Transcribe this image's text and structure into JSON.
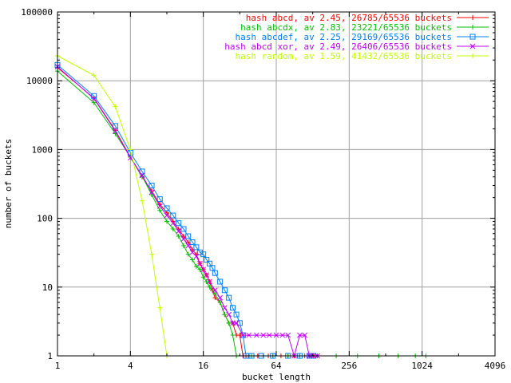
{
  "chart_data": {
    "type": "line",
    "title": "",
    "xlabel": "bucket length",
    "ylabel": "number of buckets",
    "xscale": "log2",
    "yscale": "log10",
    "xlim": [
      1,
      4096
    ],
    "ylim": [
      1,
      100000
    ],
    "grid": true,
    "legend_position": "top-right",
    "x_ticks": [
      1,
      4,
      16,
      64,
      256,
      1024,
      4096
    ],
    "x_tick_labels": [
      "1",
      "4",
      "16",
      "64",
      "256",
      "1024",
      "4096"
    ],
    "y_ticks": [
      1,
      10,
      100,
      1000,
      10000,
      100000
    ],
    "y_tick_labels": [
      "1",
      "10",
      "100",
      "1000",
      "10000",
      "100000"
    ],
    "series": [
      {
        "name": "hash abcd, av 2.45, 26785/65536 buckets",
        "color": "#ff0000",
        "marker": "plus",
        "points": [
          [
            1,
            15500
          ],
          [
            2,
            5600
          ],
          [
            3,
            1900
          ],
          [
            4,
            780
          ],
          [
            5,
            400
          ],
          [
            6,
            250
          ],
          [
            7,
            160
          ],
          [
            8,
            120
          ],
          [
            9,
            90
          ],
          [
            10,
            70
          ],
          [
            11,
            55
          ],
          [
            12,
            45
          ],
          [
            13,
            35
          ],
          [
            14,
            30
          ],
          [
            15,
            22
          ],
          [
            16,
            18
          ],
          [
            17,
            15
          ],
          [
            18,
            12
          ],
          [
            19,
            9
          ],
          [
            20,
            7
          ],
          [
            22,
            6
          ],
          [
            24,
            4
          ],
          [
            26,
            3
          ],
          [
            28,
            3
          ],
          [
            30,
            2
          ],
          [
            32,
            2
          ],
          [
            34,
            1
          ],
          [
            36,
            1
          ],
          [
            40,
            1
          ],
          [
            45,
            1
          ],
          [
            50,
            1
          ],
          [
            55,
            1
          ],
          [
            60,
            1
          ],
          [
            70,
            1
          ],
          [
            80,
            1
          ],
          [
            90,
            1
          ],
          [
            100,
            1
          ],
          [
            110,
            1
          ],
          [
            120,
            1
          ],
          [
            130,
            1
          ],
          [
            140,
            1
          ]
        ]
      },
      {
        "name": "hash abcdx, av 2.83, 23221/65536 buckets",
        "color": "#00c000",
        "marker": "plus",
        "points": [
          [
            1,
            13800
          ],
          [
            2,
            4800
          ],
          [
            3,
            1700
          ],
          [
            4,
            780
          ],
          [
            5,
            410
          ],
          [
            6,
            220
          ],
          [
            7,
            130
          ],
          [
            8,
            90
          ],
          [
            9,
            70
          ],
          [
            10,
            55
          ],
          [
            11,
            40
          ],
          [
            12,
            30
          ],
          [
            13,
            25
          ],
          [
            14,
            20
          ],
          [
            15,
            18
          ],
          [
            16,
            14
          ],
          [
            17,
            12
          ],
          [
            18,
            10
          ],
          [
            20,
            8
          ],
          [
            22,
            6
          ],
          [
            24,
            4
          ],
          [
            26,
            3
          ],
          [
            28,
            2
          ],
          [
            30,
            1
          ],
          [
            40,
            1
          ],
          [
            60,
            1
          ],
          [
            80,
            1
          ],
          [
            100,
            1
          ],
          [
            140,
            1
          ],
          [
            200,
            1
          ],
          [
            300,
            1
          ],
          [
            450,
            1
          ],
          [
            650,
            1
          ],
          [
            900,
            1
          ],
          [
            1100,
            1
          ]
        ]
      },
      {
        "name": "hash abcdef, av 2.25, 29169/65536 buckets",
        "color": "#0080ff",
        "marker": "square",
        "points": [
          [
            1,
            17000
          ],
          [
            2,
            6000
          ],
          [
            3,
            2200
          ],
          [
            4,
            900
          ],
          [
            5,
            480
          ],
          [
            6,
            300
          ],
          [
            7,
            190
          ],
          [
            8,
            140
          ],
          [
            9,
            110
          ],
          [
            10,
            85
          ],
          [
            11,
            70
          ],
          [
            12,
            55
          ],
          [
            13,
            45
          ],
          [
            14,
            38
          ],
          [
            15,
            32
          ],
          [
            16,
            30
          ],
          [
            17,
            25
          ],
          [
            18,
            22
          ],
          [
            19,
            19
          ],
          [
            20,
            16
          ],
          [
            22,
            12
          ],
          [
            24,
            9
          ],
          [
            26,
            7
          ],
          [
            28,
            5
          ],
          [
            30,
            4
          ],
          [
            32,
            3
          ],
          [
            34,
            2
          ],
          [
            36,
            1
          ],
          [
            40,
            1
          ],
          [
            48,
            1
          ],
          [
            60,
            1
          ],
          [
            80,
            1
          ],
          [
            100,
            1
          ],
          [
            120,
            1
          ],
          [
            130,
            1
          ]
        ]
      },
      {
        "name": "hash abcd xor, av 2.49, 26406/65536 buckets",
        "color": "#c000ff",
        "marker": "cross",
        "points": [
          [
            1,
            16000
          ],
          [
            2,
            5500
          ],
          [
            3,
            1850
          ],
          [
            4,
            760
          ],
          [
            5,
            420
          ],
          [
            6,
            240
          ],
          [
            7,
            150
          ],
          [
            8,
            110
          ],
          [
            9,
            85
          ],
          [
            10,
            65
          ],
          [
            11,
            50
          ],
          [
            12,
            40
          ],
          [
            13,
            32
          ],
          [
            14,
            28
          ],
          [
            15,
            22
          ],
          [
            16,
            18
          ],
          [
            17,
            15
          ],
          [
            18,
            12
          ],
          [
            20,
            9
          ],
          [
            22,
            7
          ],
          [
            24,
            5
          ],
          [
            26,
            4
          ],
          [
            28,
            3
          ],
          [
            30,
            3
          ],
          [
            34,
            2
          ],
          [
            38,
            2
          ],
          [
            44,
            2
          ],
          [
            50,
            2
          ],
          [
            56,
            2
          ],
          [
            64,
            2
          ],
          [
            72,
            2
          ],
          [
            80,
            2
          ],
          [
            90,
            1
          ],
          [
            100,
            2
          ],
          [
            110,
            2
          ],
          [
            120,
            1
          ],
          [
            130,
            1
          ],
          [
            140,
            1
          ]
        ]
      },
      {
        "name": "hash random, av 1.59, 41432/65536 buckets",
        "color": "#c0ff00",
        "marker": "plus",
        "points": [
          [
            1,
            23000
          ],
          [
            2,
            12000
          ],
          [
            3,
            4200
          ],
          [
            4,
            1000
          ],
          [
            5,
            180
          ],
          [
            6,
            30
          ],
          [
            7,
            5
          ],
          [
            8,
            1
          ]
        ]
      }
    ]
  }
}
